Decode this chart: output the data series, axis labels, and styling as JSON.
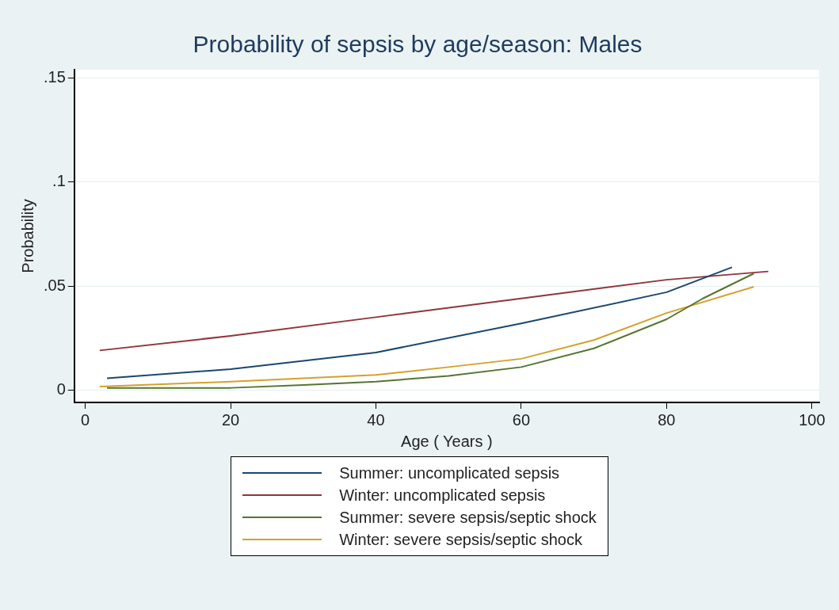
{
  "chart_data": {
    "type": "line",
    "title": "Probability of sepsis by age/season: Males",
    "xlabel": "Age ( Years )",
    "ylabel": "Probability",
    "xlim": [
      -1.5,
      101
    ],
    "xticks": [
      0,
      20,
      40,
      60,
      80,
      100
    ],
    "ylim": [
      -0.006,
      0.154
    ],
    "yticks": [
      {
        "value": 0,
        "label": "0"
      },
      {
        "value": 0.05,
        "label": ".05"
      },
      {
        "value": 0.1,
        "label": ".1"
      },
      {
        "value": 0.15,
        "label": ".15"
      }
    ],
    "grid": "y",
    "legend": "bottom",
    "marker": "none",
    "line_style": "solid",
    "series": [
      {
        "name": "Summer: uncomplicated sepsis",
        "color": "#1a476f",
        "x": [
          3,
          20,
          40,
          60,
          80,
          89
        ],
        "values": [
          0.0056,
          0.01,
          0.018,
          0.032,
          0.047,
          0.059
        ]
      },
      {
        "name": "Winter: uncomplicated sepsis",
        "color": "#90353b",
        "x": [
          2,
          20,
          40,
          60,
          80,
          94
        ],
        "values": [
          0.019,
          0.026,
          0.035,
          0.044,
          0.053,
          0.057
        ]
      },
      {
        "name": "Summer: severe sepsis/septic shock",
        "color": "#55752f",
        "x": [
          3,
          20,
          30,
          40,
          50,
          60,
          70,
          80,
          85,
          92
        ],
        "values": [
          0.001,
          0.001,
          0.0024,
          0.004,
          0.0068,
          0.011,
          0.02,
          0.034,
          0.044,
          0.056
        ]
      },
      {
        "name": "Winter: severe sepsis/septic shock",
        "color": "#d4a12a",
        "x": [
          2,
          20,
          40,
          50,
          60,
          70,
          80,
          92
        ],
        "values": [
          0.0016,
          0.004,
          0.0072,
          0.011,
          0.015,
          0.024,
          0.037,
          0.0496
        ]
      }
    ]
  }
}
